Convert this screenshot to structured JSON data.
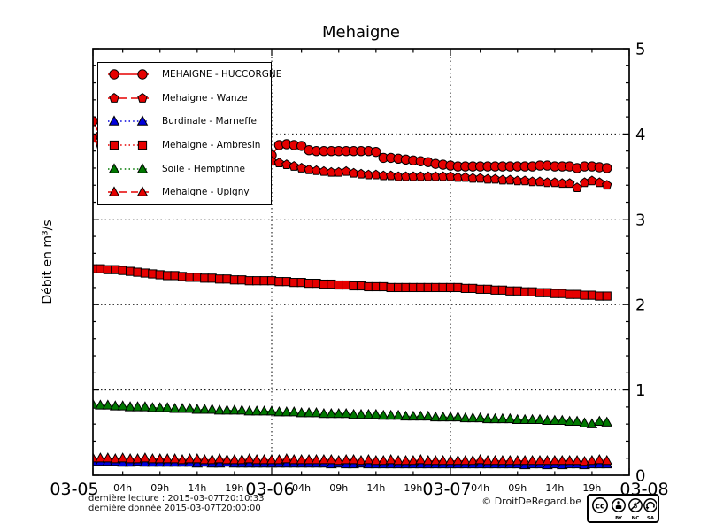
{
  "chart_data": {
    "type": "line",
    "title": "Mehaigne",
    "ylabel": "Débit en m³/s",
    "ylim": [
      0,
      5
    ],
    "yticks": [
      "0",
      "1",
      "2",
      "3",
      "4",
      "5"
    ],
    "y_minor_step": 0.2,
    "x_total_hours": 72,
    "day_tick_labels": [
      "03-05",
      "03-06",
      "03-07",
      "03-08"
    ],
    "hour_ticks": [
      4,
      9,
      14,
      19
    ],
    "hour_tick_labels": [
      "04h",
      "09h",
      "14h",
      "19h"
    ],
    "grid": {
      "horizontal_dotted_at": [
        1,
        2,
        3,
        4
      ],
      "vertical_dotted_at_hours": [
        24,
        48
      ]
    },
    "legend_position": "upper left",
    "series": [
      {
        "name": "MEHAIGNE - HUCCORGNE",
        "color": "#e60000",
        "marker": "circle",
        "line": "solid",
        "x_step_hours": 1,
        "values": [
          4.15,
          3.98,
          3.87,
          3.85,
          3.83,
          3.81,
          3.79,
          3.77,
          3.76,
          3.74,
          3.73,
          3.71,
          3.7,
          3.69,
          3.68,
          3.67,
          3.66,
          3.65,
          3.64,
          3.63,
          3.62,
          3.61,
          3.6,
          3.57,
          3.75,
          3.87,
          3.88,
          3.87,
          3.86,
          3.81,
          3.8,
          3.8,
          3.8,
          3.8,
          3.8,
          3.8,
          3.8,
          3.8,
          3.79,
          3.72,
          3.72,
          3.71,
          3.7,
          3.69,
          3.68,
          3.67,
          3.65,
          3.64,
          3.63,
          3.62,
          3.62,
          3.62,
          3.62,
          3.62,
          3.62,
          3.62,
          3.62,
          3.62,
          3.62,
          3.62,
          3.63,
          3.63,
          3.62,
          3.62,
          3.62,
          3.6,
          3.62,
          3.62,
          3.61,
          3.6
        ]
      },
      {
        "name": "Mehaigne - Wanze",
        "color": "#e60000",
        "marker": "pentagon",
        "line": "dashed",
        "x_step_hours": 1,
        "values": [
          3.95,
          3.88,
          3.82,
          3.8,
          3.79,
          3.78,
          3.77,
          3.76,
          3.75,
          3.75,
          3.74,
          3.74,
          3.73,
          3.73,
          3.72,
          3.72,
          3.71,
          3.71,
          3.7,
          3.7,
          3.7,
          3.7,
          3.7,
          3.7,
          3.68,
          3.66,
          3.64,
          3.62,
          3.6,
          3.58,
          3.57,
          3.56,
          3.55,
          3.55,
          3.56,
          3.54,
          3.53,
          3.52,
          3.52,
          3.51,
          3.51,
          3.5,
          3.5,
          3.5,
          3.5,
          3.5,
          3.5,
          3.5,
          3.5,
          3.49,
          3.49,
          3.48,
          3.48,
          3.47,
          3.47,
          3.46,
          3.46,
          3.45,
          3.45,
          3.44,
          3.44,
          3.43,
          3.43,
          3.42,
          3.42,
          3.37,
          3.43,
          3.45,
          3.43,
          3.4
        ]
      },
      {
        "name": "Burdinale - Marneffe",
        "color": "#0000dd",
        "marker": "triangle",
        "line": "dotted",
        "x_step_hours": 1,
        "values": [
          0.16,
          0.16,
          0.16,
          0.16,
          0.15,
          0.15,
          0.16,
          0.15,
          0.15,
          0.15,
          0.15,
          0.15,
          0.15,
          0.15,
          0.14,
          0.15,
          0.14,
          0.14,
          0.15,
          0.14,
          0.14,
          0.14,
          0.14,
          0.14,
          0.14,
          0.14,
          0.14,
          0.14,
          0.14,
          0.14,
          0.14,
          0.14,
          0.13,
          0.14,
          0.13,
          0.13,
          0.14,
          0.13,
          0.13,
          0.13,
          0.13,
          0.13,
          0.13,
          0.13,
          0.13,
          0.13,
          0.13,
          0.13,
          0.13,
          0.13,
          0.13,
          0.13,
          0.13,
          0.13,
          0.13,
          0.13,
          0.13,
          0.13,
          0.12,
          0.13,
          0.13,
          0.12,
          0.13,
          0.12,
          0.13,
          0.13,
          0.12,
          0.13,
          0.13,
          0.13
        ]
      },
      {
        "name": "Mehaigne - Ambresin",
        "color": "#e60000",
        "marker": "square",
        "line": "dotted",
        "x_step_hours": 1,
        "values": [
          2.42,
          2.42,
          2.41,
          2.41,
          2.4,
          2.39,
          2.38,
          2.37,
          2.36,
          2.35,
          2.34,
          2.34,
          2.33,
          2.32,
          2.32,
          2.31,
          2.31,
          2.3,
          2.3,
          2.29,
          2.29,
          2.28,
          2.28,
          2.28,
          2.28,
          2.27,
          2.27,
          2.26,
          2.26,
          2.25,
          2.25,
          2.24,
          2.24,
          2.23,
          2.23,
          2.22,
          2.22,
          2.21,
          2.21,
          2.21,
          2.2,
          2.2,
          2.2,
          2.2,
          2.2,
          2.2,
          2.2,
          2.2,
          2.2,
          2.2,
          2.19,
          2.19,
          2.18,
          2.18,
          2.17,
          2.17,
          2.16,
          2.16,
          2.15,
          2.15,
          2.14,
          2.14,
          2.13,
          2.13,
          2.12,
          2.12,
          2.11,
          2.11,
          2.1,
          2.1
        ]
      },
      {
        "name": "Soile - Hemptinne",
        "color": "#007800",
        "marker": "triangle",
        "line": "dotted",
        "x_step_hours": 1,
        "values": [
          0.83,
          0.82,
          0.82,
          0.81,
          0.81,
          0.8,
          0.8,
          0.8,
          0.79,
          0.79,
          0.79,
          0.78,
          0.78,
          0.78,
          0.77,
          0.77,
          0.77,
          0.76,
          0.76,
          0.76,
          0.76,
          0.75,
          0.75,
          0.75,
          0.75,
          0.74,
          0.74,
          0.74,
          0.73,
          0.73,
          0.73,
          0.72,
          0.72,
          0.72,
          0.72,
          0.71,
          0.71,
          0.71,
          0.71,
          0.7,
          0.7,
          0.7,
          0.69,
          0.69,
          0.69,
          0.69,
          0.68,
          0.68,
          0.68,
          0.68,
          0.67,
          0.67,
          0.67,
          0.66,
          0.66,
          0.66,
          0.66,
          0.65,
          0.65,
          0.65,
          0.65,
          0.64,
          0.64,
          0.64,
          0.63,
          0.63,
          0.61,
          0.6,
          0.63,
          0.62
        ]
      },
      {
        "name": "Mehaigne - Upigny",
        "color": "#e60000",
        "marker": "triangle",
        "line": "dashed",
        "x_step_hours": 1,
        "values": [
          0.2,
          0.2,
          0.2,
          0.19,
          0.2,
          0.19,
          0.19,
          0.2,
          0.19,
          0.19,
          0.19,
          0.19,
          0.18,
          0.19,
          0.19,
          0.18,
          0.18,
          0.19,
          0.18,
          0.18,
          0.18,
          0.19,
          0.18,
          0.18,
          0.18,
          0.18,
          0.19,
          0.18,
          0.18,
          0.18,
          0.18,
          0.18,
          0.18,
          0.17,
          0.18,
          0.18,
          0.17,
          0.18,
          0.17,
          0.17,
          0.18,
          0.17,
          0.17,
          0.17,
          0.18,
          0.17,
          0.17,
          0.17,
          0.17,
          0.17,
          0.17,
          0.17,
          0.18,
          0.17,
          0.17,
          0.17,
          0.17,
          0.17,
          0.17,
          0.17,
          0.17,
          0.17,
          0.17,
          0.17,
          0.17,
          0.17,
          0.16,
          0.17,
          0.18,
          0.17
        ]
      }
    ]
  },
  "footer": {
    "last_reading": "dernière lecture : 2015-03-07T20:10:33",
    "last_data": "dernière donnée  2015-03-07T20:00:00",
    "copyright": "© DroitDeRegard.be",
    "license": {
      "cc": "cc",
      "by": "BY",
      "nc": "NC",
      "sa": "SA"
    }
  }
}
